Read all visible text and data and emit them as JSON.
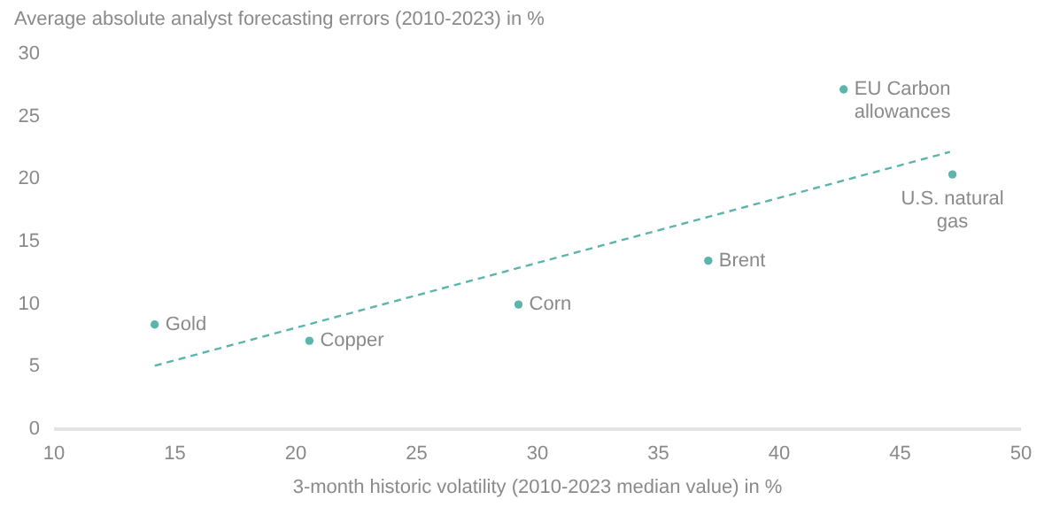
{
  "chart_data": {
    "type": "scatter",
    "xlabel": "3-month historic volatility (2010-2023 median value) in %",
    "ylabel": "Average absolute analyst forecasting errors (2010-2023) in %",
    "xlim": [
      10,
      50
    ],
    "xticks": [
      10,
      15,
      20,
      25,
      30,
      35,
      40,
      45,
      50
    ],
    "ylim": [
      0,
      30
    ],
    "yticks": [
      0,
      5,
      10,
      15,
      20,
      25,
      30
    ],
    "grid": false,
    "series": [
      {
        "color": "#5bb5ad",
        "marker": "circle",
        "x": [
          14.2,
          20.6,
          29.25,
          37.1,
          42.7,
          47.2
        ],
        "values": [
          8.3,
          7.0,
          9.9,
          13.4,
          27.1,
          20.3
        ]
      },
      {
        "type": "line",
        "color": "#5bb5ad",
        "line_style": "dashed",
        "x": [
          14.2,
          47.1
        ],
        "values": [
          5.0,
          22.1
        ]
      }
    ],
    "annotations": [
      {
        "text": "Gold",
        "x": 14.2,
        "y": 8.3
      },
      {
        "text": "Copper",
        "x": 20.6,
        "y": 7.0
      },
      {
        "text": "Corn",
        "x": 29.25,
        "y": 9.9
      },
      {
        "text": "Brent",
        "x": 37.1,
        "y": 13.4
      },
      {
        "text": "EU Carbon allowances",
        "x": 42.7,
        "y": 27.1
      },
      {
        "text": "U.S. natural gas",
        "x": 47.2,
        "y": 20.3
      }
    ]
  }
}
